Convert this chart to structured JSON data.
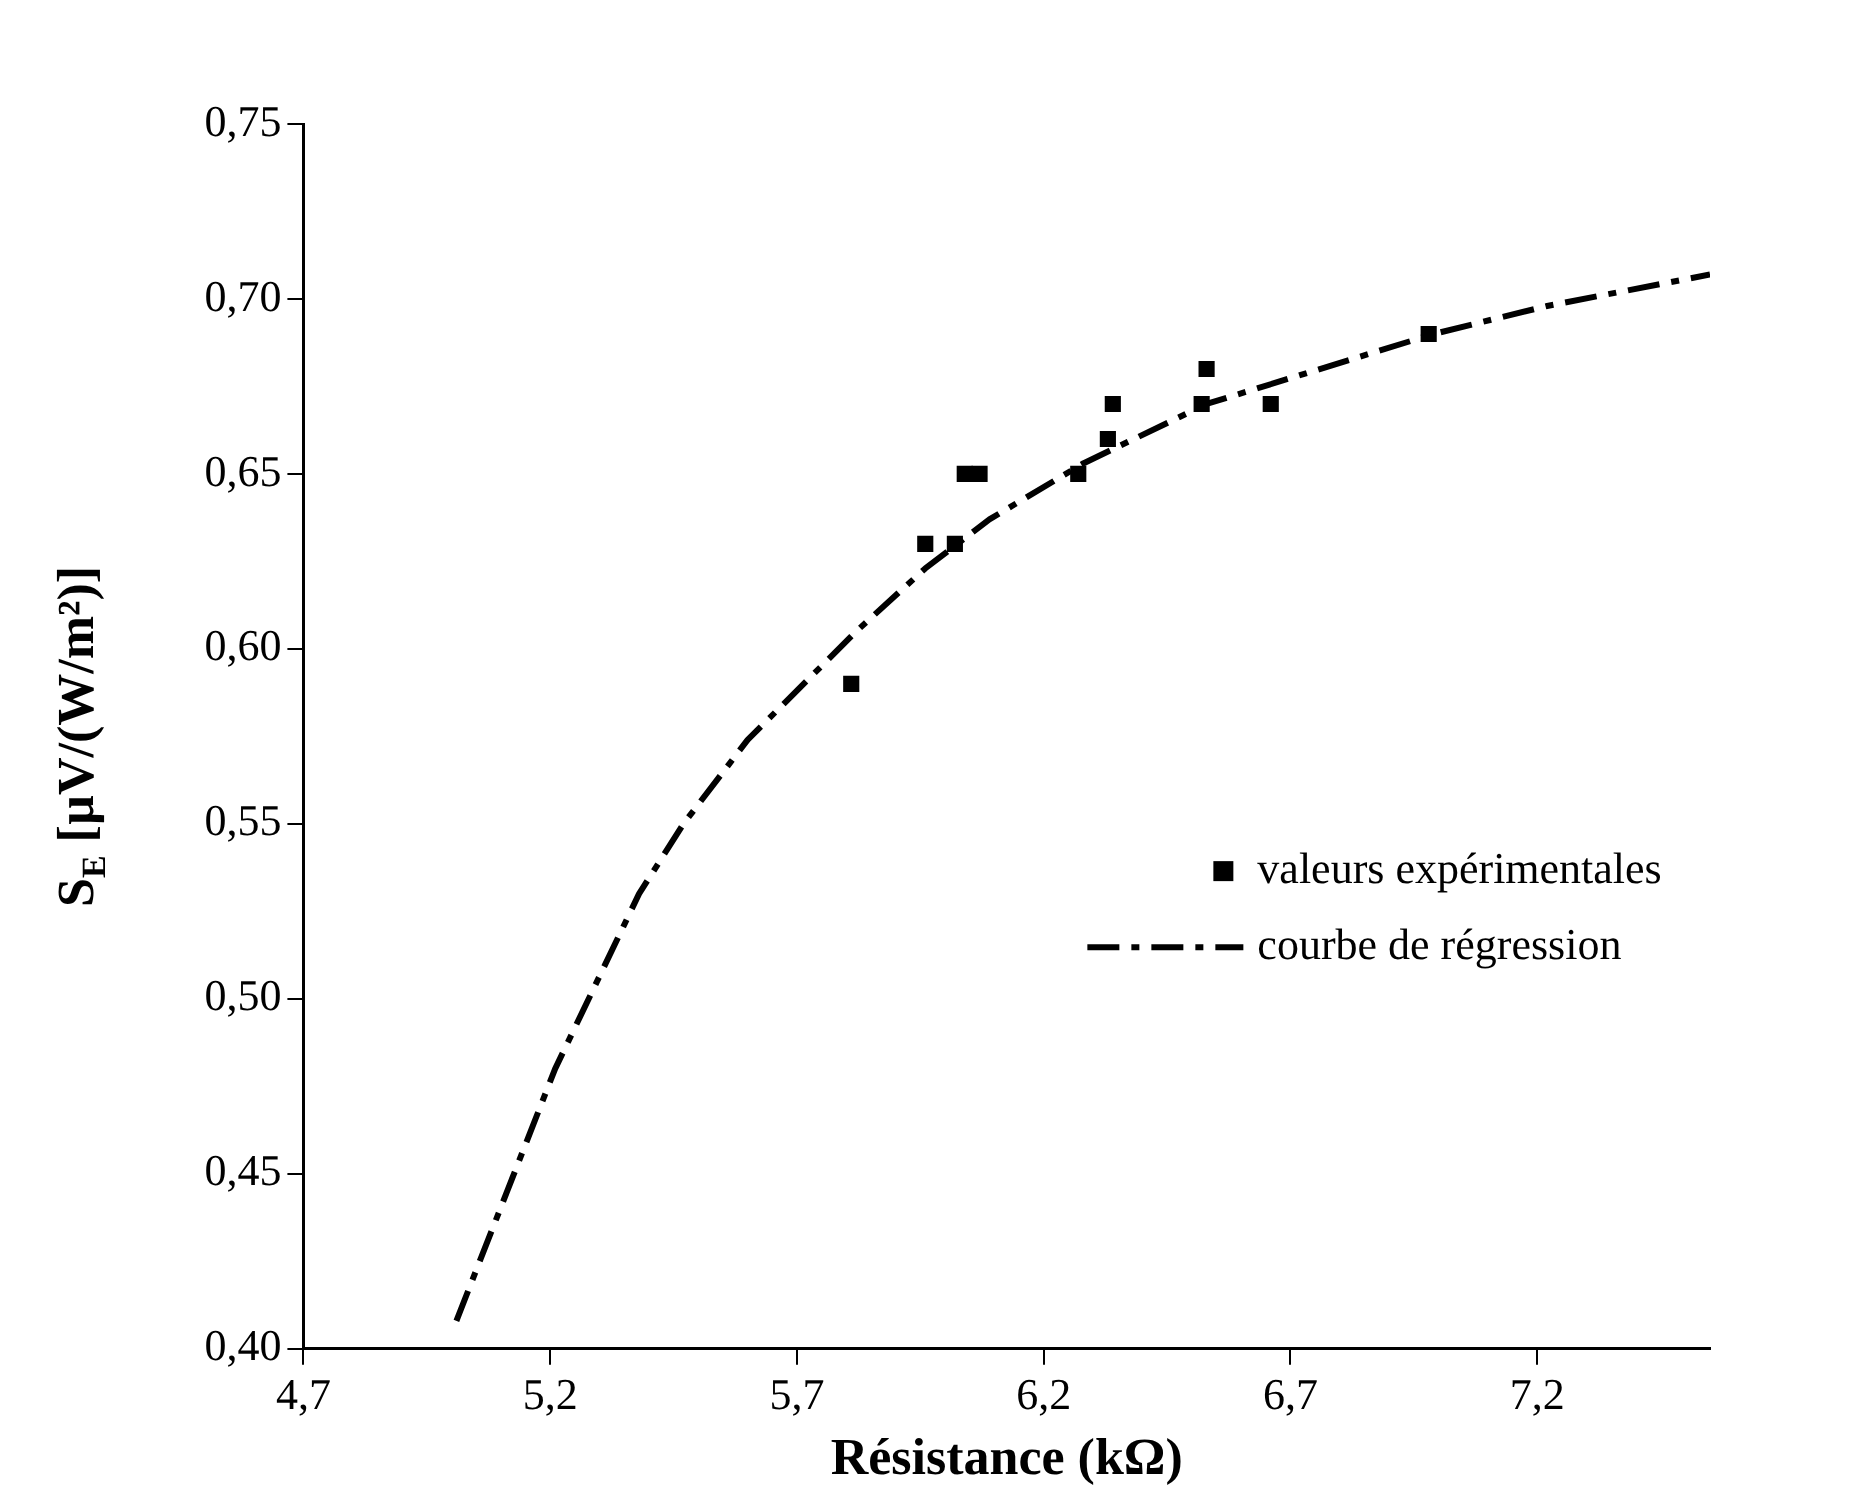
{
  "chart_data": {
    "type": "scatter",
    "xlabel": "Résistance (kΩ)",
    "ylabel": "S$_{E}$ [µV/(W/m²)]",
    "xlim": [
      4.7,
      7.55
    ],
    "xticks": [
      {
        "value": 4.7,
        "label": "4,7"
      },
      {
        "value": 5.2,
        "label": "5,2"
      },
      {
        "value": 5.7,
        "label": "5,7"
      },
      {
        "value": 6.2,
        "label": "6,2"
      },
      {
        "value": 6.7,
        "label": "6,7"
      },
      {
        "value": 7.2,
        "label": "7,2"
      }
    ],
    "ylim": [
      0.4,
      0.75
    ],
    "yticks": [
      {
        "value": 0.4,
        "label": "0,40"
      },
      {
        "value": 0.45,
        "label": "0,45"
      },
      {
        "value": 0.5,
        "label": "0,50"
      },
      {
        "value": 0.55,
        "label": "0,55"
      },
      {
        "value": 0.6,
        "label": "0,60"
      },
      {
        "value": 0.65,
        "label": "0,65"
      },
      {
        "value": 0.7,
        "label": "0,70"
      },
      {
        "value": 0.75,
        "label": "0,75"
      }
    ],
    "grid": false,
    "legend": "right",
    "marker": "square",
    "series": [
      {
        "name": "valeurs expérimentales",
        "color": "#000000",
        "x": [
          5.81,
          5.96,
          6.02,
          6.04,
          6.07,
          6.27,
          6.33,
          6.34,
          6.52,
          6.53,
          6.66,
          6.98
        ],
        "values": [
          0.59,
          0.63,
          0.63,
          0.65,
          0.65,
          0.65,
          0.66,
          0.67,
          0.67,
          0.68,
          0.67,
          0.69
        ]
      },
      {
        "name": "courbe de régression",
        "type": "line",
        "color": "#000000",
        "line_style": "dashed",
        "marker": "none",
        "x": [
          5.01,
          5.21,
          5.38,
          5.47,
          5.6,
          5.82,
          5.96,
          6.09,
          6.28,
          6.53,
          6.99,
          7.22,
          7.55
        ],
        "values": [
          0.408,
          0.48,
          0.53,
          0.55,
          0.574,
          0.605,
          0.623,
          0.637,
          0.653,
          0.67,
          0.69,
          0.698,
          0.707
        ]
      }
    ]
  }
}
